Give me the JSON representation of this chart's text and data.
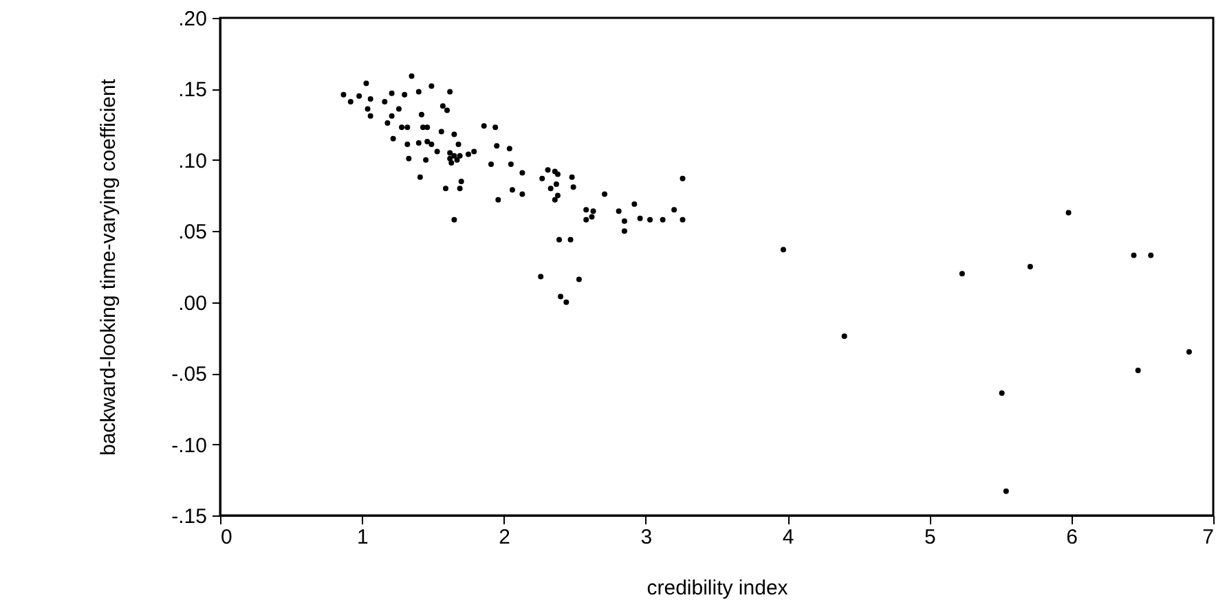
{
  "chart_data": {
    "type": "scatter",
    "xlabel": "credibility index",
    "ylabel": "backward-looking time-varying coefficient",
    "x": [
      0.87,
      0.92,
      0.98,
      1.03,
      1.06,
      1.16,
      1.21,
      1.3,
      1.35,
      1.4,
      1.49,
      1.62,
      1.04,
      1.06,
      1.26,
      1.21,
      1.42,
      1.57,
      1.6,
      1.18,
      1.28,
      1.32,
      1.43,
      1.46,
      1.56,
      1.65,
      1.86,
      1.94,
      1.22,
      1.32,
      1.4,
      1.46,
      1.49,
      1.68,
      1.95,
      2.04,
      1.53,
      1.62,
      1.65,
      1.69,
      1.75,
      1.79,
      1.62,
      1.67,
      1.63,
      1.33,
      1.45,
      1.91,
      2.05,
      2.13,
      1.41,
      1.7,
      1.69,
      1.59,
      1.65,
      2.06,
      2.13,
      1.96,
      2.27,
      2.31,
      2.36,
      2.38,
      2.48,
      2.37,
      2.33,
      2.38,
      2.36,
      2.49,
      2.71,
      2.58,
      2.63,
      2.58,
      2.62,
      2.81,
      2.85,
      2.92,
      2.96,
      3.03,
      3.12,
      3.2,
      3.26,
      3.26,
      2.85,
      2.26,
      2.39,
      2.47,
      2.53,
      2.4,
      2.44,
      3.97,
      4.4,
      5.23,
      5.71,
      5.51,
      5.54,
      5.98,
      6.44,
      6.56,
      6.47,
      6.83
    ],
    "values": [
      0.146,
      0.141,
      0.145,
      0.154,
      0.143,
      0.141,
      0.147,
      0.146,
      0.159,
      0.148,
      0.152,
      0.148,
      0.136,
      0.131,
      0.136,
      0.131,
      0.132,
      0.138,
      0.135,
      0.126,
      0.123,
      0.123,
      0.123,
      0.123,
      0.12,
      0.118,
      0.124,
      0.123,
      0.115,
      0.111,
      0.112,
      0.113,
      0.111,
      0.111,
      0.11,
      0.108,
      0.106,
      0.105,
      0.103,
      0.103,
      0.104,
      0.106,
      0.101,
      0.1,
      0.098,
      0.101,
      0.1,
      0.097,
      0.097,
      0.091,
      0.088,
      0.085,
      0.08,
      0.08,
      0.058,
      0.079,
      0.076,
      0.072,
      0.087,
      0.093,
      0.092,
      0.09,
      0.088,
      0.083,
      0.08,
      0.075,
      0.072,
      0.081,
      0.076,
      0.065,
      0.064,
      0.058,
      0.06,
      0.064,
      0.057,
      0.069,
      0.059,
      0.058,
      0.058,
      0.065,
      0.058,
      0.087,
      0.05,
      0.018,
      0.044,
      0.044,
      0.016,
      0.004,
      0.0,
      0.037,
      -0.024,
      0.02,
      0.025,
      -0.064,
      -0.133,
      0.063,
      0.033,
      0.033,
      -0.048,
      -0.035
    ],
    "color": "#000000",
    "marker": "circle",
    "xlim": [
      0,
      7
    ],
    "xticks": [
      0,
      1,
      2,
      3,
      4,
      5,
      6,
      7
    ],
    "ylim": [
      -0.15,
      0.2
    ],
    "yticks": [
      {
        "value": -0.15,
        "label": "-.15"
      },
      {
        "value": -0.1,
        "label": "-.10"
      },
      {
        "value": -0.05,
        "label": "-.05"
      },
      {
        "value": 0,
        "label": ".00"
      },
      {
        "value": 0.05,
        "label": ".05"
      },
      {
        "value": 0.1,
        "label": ".10"
      },
      {
        "value": 0.15,
        "label": ".15"
      },
      {
        "value": 0.2,
        "label": ".20"
      }
    ],
    "grid": false
  }
}
